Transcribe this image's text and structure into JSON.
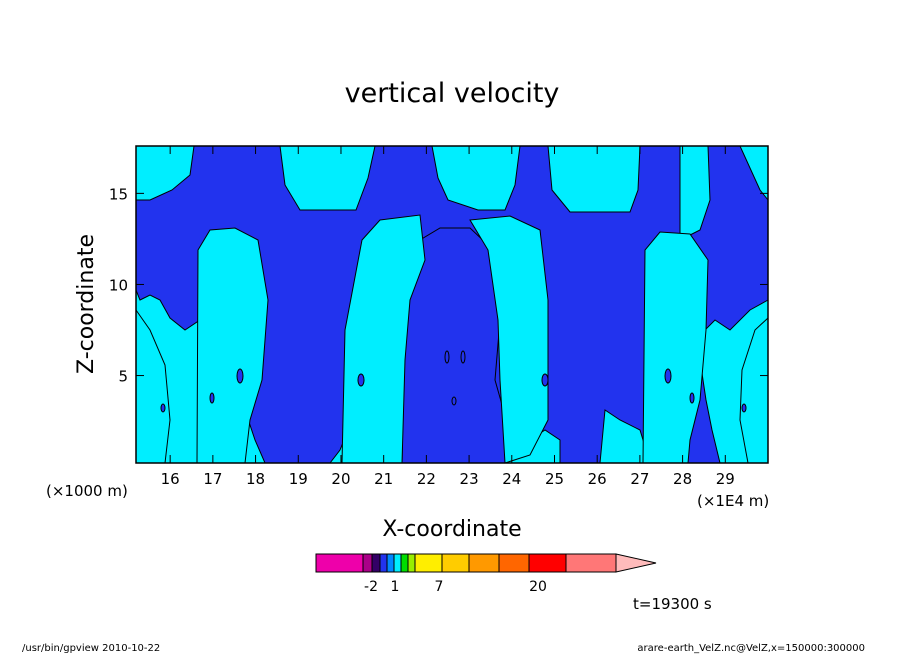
{
  "chart_data": {
    "type": "heatmap",
    "title": "vertical velocity",
    "xlabel": "X-coordinate",
    "ylabel": "Z-coordinate",
    "x_unit": "(×1000 m)",
    "x_scale_note": "(×1E4 m)",
    "xlim": [
      15.2,
      30.0
    ],
    "ylim": [
      0.2,
      17.6
    ],
    "x_ticks": [
      "16",
      "17",
      "18",
      "19",
      "20",
      "21",
      "22",
      "23",
      "24",
      "25",
      "26",
      "27",
      "28",
      "29"
    ],
    "y_ticks": [
      "5",
      "10",
      "15"
    ],
    "levels": [
      {
        "range": "< 0",
        "color": "#2233ee"
      },
      {
        "range": "0 – 1",
        "color": "#00eeff"
      }
    ],
    "colorbar": {
      "colors": [
        "#ee00aa",
        "#aa0088",
        "#330066",
        "#2233ee",
        "#0088ff",
        "#00eeff",
        "#00dd00",
        "#99ee00",
        "#ffee00",
        "#ffcc00",
        "#ff9900",
        "#ff6600",
        "#ff0000",
        "#ff7777",
        "#ffbbbb"
      ],
      "labels": [
        "-2",
        "1",
        "7",
        "20"
      ]
    },
    "time_label": "t=19300 s"
  },
  "footer": {
    "left": "/usr/bin/gpview   2010-10-22",
    "right": "arare-earth_VelZ.nc@VelZ,x=150000:300000"
  }
}
